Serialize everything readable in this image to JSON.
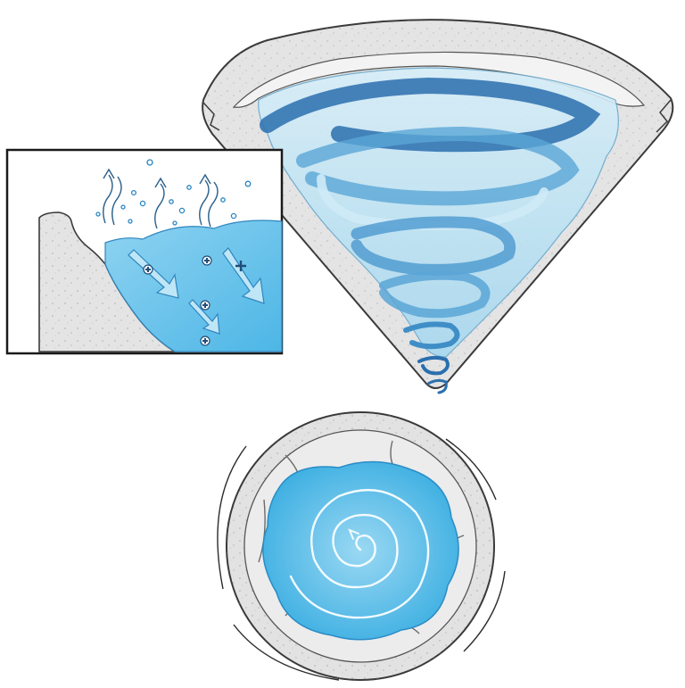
{
  "colors": {
    "stone_light": "#ececec",
    "stone_mid": "#d9d9d9",
    "stone_dark": "#bdbdbd",
    "outline": "#3a3a3a",
    "water_light": "#bfe3f2",
    "water_mid": "#7ccbec",
    "water_deep": "#3fa9dc",
    "spiral_dark": "#2a6fae",
    "spiral_mid": "#5aa6d6",
    "spiral_light": "#cfeaf7",
    "inset_frame": "#1a1a1a",
    "symbol_dark": "#1e4e7a"
  },
  "panels": {
    "cone": {
      "name": "cone-vortex-illustration",
      "spiral_icon": "spiral-flow-icon"
    },
    "inset": {
      "name": "water-surface-detail-inset",
      "steam_icon": "rising-vapor-arrow-icon",
      "flow_icon": "downward-flow-arrow-icon",
      "ion_icon": "plus-ion-icon"
    },
    "top_view": {
      "name": "top-view-vortex-basin",
      "spiral_icon": "swirl-spiral-icon",
      "direction_icon": "rotation-arrow-icon"
    }
  }
}
